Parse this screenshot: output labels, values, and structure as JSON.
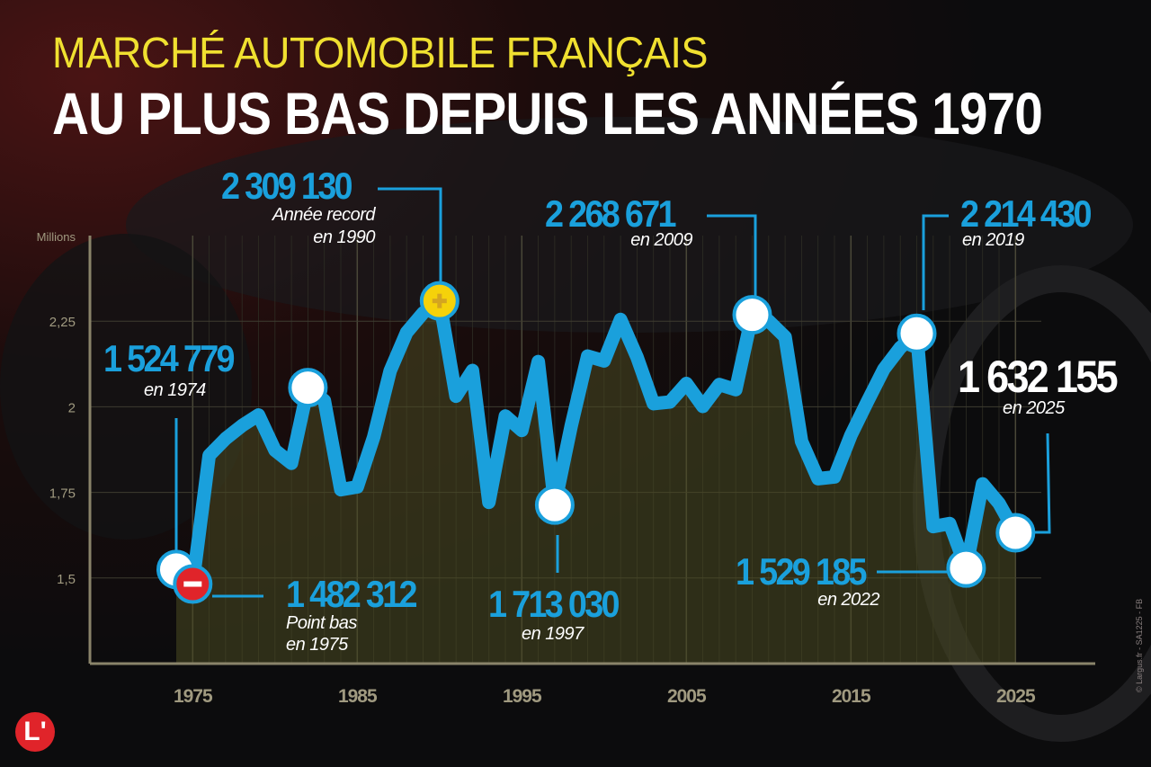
{
  "header": {
    "title_line1": "MARCHÉ AUTOMOBILE FRANÇAIS",
    "title_line2": "AU PLUS BAS DEPUIS LES ANNÉES 1970"
  },
  "annotations": {
    "a1990": {
      "value": "2 309 130",
      "line1": "Année record",
      "line2": "en 1990"
    },
    "a2009": {
      "value": "2 268 671",
      "line1": "en 2009"
    },
    "a2019": {
      "value": "2 214 430",
      "line1": "en 2019"
    },
    "a1974": {
      "value": "1 524 779",
      "line1": "en 1974"
    },
    "a1975": {
      "value": "1 482 312",
      "line1": "Point bas",
      "line2": "en 1975"
    },
    "a1997": {
      "value": "1 713 030",
      "line1": "en 1997"
    },
    "a2022": {
      "value": "1 529 185",
      "line1": "en 2022"
    },
    "a2025": {
      "value": "1 632 155",
      "line1": "en 2025"
    }
  },
  "credit": "© Largus.fr - SA1225 - FB",
  "logo": "L'",
  "colors": {
    "line": "#1aa0dc",
    "title_accent": "#f0e030",
    "low_marker": "#e0242a",
    "high_marker": "#f5d20a",
    "axis": "#8a846a"
  },
  "chart_data": {
    "type": "area",
    "title": "",
    "xlabel": "",
    "ylabel": "Millions",
    "ylim": [
      1.25,
      2.5
    ],
    "xlim": [
      1970,
      2031
    ],
    "yticks": [
      1.5,
      1.75,
      2,
      2.25
    ],
    "ytick_labels": [
      "1,5",
      "1,75",
      "2",
      "2,25"
    ],
    "xticks": [
      1975,
      1985,
      1995,
      2005,
      2015,
      2025
    ],
    "xtick_labels": [
      "1975",
      "1985",
      "1995",
      "2005",
      "2015",
      "2025"
    ],
    "grid": true,
    "x": [
      1974,
      1975,
      1976,
      1977,
      1978,
      1979,
      1980,
      1981,
      1982,
      1983,
      1984,
      1985,
      1986,
      1987,
      1988,
      1989,
      1990,
      1991,
      1992,
      1993,
      1994,
      1995,
      1996,
      1997,
      1998,
      1999,
      2000,
      2001,
      2002,
      2003,
      2004,
      2005,
      2006,
      2007,
      2008,
      2009,
      2010,
      2011,
      2012,
      2013,
      2014,
      2015,
      2016,
      2017,
      2018,
      2019,
      2020,
      2021,
      2022,
      2023,
      2024,
      2025
    ],
    "values": [
      1.525,
      1.482,
      1.858,
      1.907,
      1.945,
      1.976,
      1.873,
      1.835,
      2.056,
      2.018,
      1.758,
      1.766,
      1.912,
      2.105,
      2.217,
      2.274,
      2.309,
      2.031,
      2.106,
      1.721,
      1.973,
      1.931,
      2.132,
      1.713,
      1.944,
      2.148,
      2.134,
      2.255,
      2.145,
      2.009,
      2.014,
      2.068,
      2.001,
      2.065,
      2.05,
      2.269,
      2.251,
      2.204,
      1.899,
      1.79,
      1.795,
      1.917,
      2.015,
      2.11,
      2.173,
      2.214,
      1.65,
      1.659,
      1.529,
      1.775,
      1.718,
      1.632
    ],
    "highlighted": [
      {
        "year": 1974,
        "value": 1.524779,
        "marker": "circle"
      },
      {
        "year": 1975,
        "value": 1.482312,
        "marker": "minus"
      },
      {
        "year": 1982,
        "value": 2.056,
        "marker": "circle"
      },
      {
        "year": 1990,
        "value": 2.30913,
        "marker": "plus"
      },
      {
        "year": 1997,
        "value": 1.71303,
        "marker": "circle"
      },
      {
        "year": 2009,
        "value": 2.268671,
        "marker": "circle"
      },
      {
        "year": 2019,
        "value": 2.21443,
        "marker": "circle"
      },
      {
        "year": 2022,
        "value": 1.529185,
        "marker": "circle"
      },
      {
        "year": 2025,
        "value": 1.632155,
        "marker": "circle"
      }
    ]
  }
}
